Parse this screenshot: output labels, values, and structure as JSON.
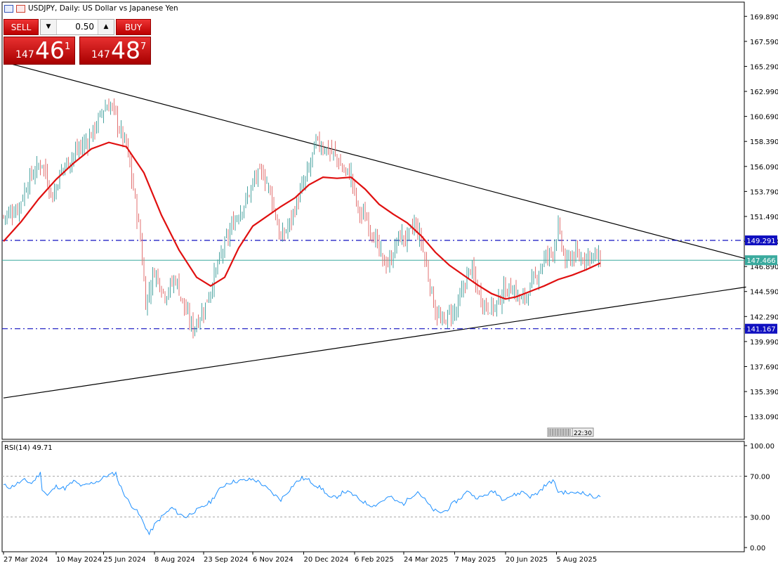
{
  "header": {
    "title": "USDJPY, Daily:  US Dollar vs Japanese Yen"
  },
  "trade_panel": {
    "sell_label": "SELL",
    "buy_label": "BUY",
    "lot_value": "0.50",
    "sell_price_prefix": "147",
    "sell_price_big": "46",
    "sell_price_sup": "1",
    "buy_price_prefix": "147",
    "buy_price_big": "48",
    "buy_price_sup": "7"
  },
  "time_badge": "22:30",
  "rsi": {
    "label": "RSI(14) 49.71"
  },
  "colors": {
    "ma_line": "#e01010",
    "level_line": "#1010c0",
    "bid_line": "#3aaa9e",
    "bull": "#4aa3a0",
    "bear": "#e27070",
    "rsi_line": "#1e90ff",
    "trendline": "#000000"
  },
  "chart_data": [
    {
      "type": "candlestick",
      "symbol": "USDJPY",
      "timeframe": "Daily",
      "ylim": [
        131.0,
        171.2
      ],
      "y_ticks": [
        "169.890",
        "167.590",
        "165.290",
        "162.990",
        "160.690",
        "158.390",
        "156.090",
        "153.790",
        "151.490",
        "149.190",
        "146.890",
        "144.590",
        "142.290",
        "139.990",
        "137.690",
        "135.390",
        "133.090"
      ],
      "x_ticks": [
        "27 Mar 2024",
        "10 May 2024",
        "25 Jun 2024",
        "8 Aug 2024",
        "23 Sep 2024",
        "6 Nov 2024",
        "20 Dec 2024",
        "6 Feb 2025",
        "24 Mar 2025",
        "7 May 2025",
        "20 Jun 2025",
        "5 Aug 2025"
      ],
      "close_path": [
        [
          0,
          151.5
        ],
        [
          8,
          152.2
        ],
        [
          15,
          155.0
        ],
        [
          22,
          156.5
        ],
        [
          28,
          153.2
        ],
        [
          33,
          155.8
        ],
        [
          40,
          157.2
        ],
        [
          48,
          158.5
        ],
        [
          52,
          159.6
        ],
        [
          57,
          161.4
        ],
        [
          61,
          161.7
        ],
        [
          63,
          161.2
        ],
        [
          66,
          159.5
        ],
        [
          70,
          158.0
        ],
        [
          74,
          154.0
        ],
        [
          78,
          149.5
        ],
        [
          81,
          143.5
        ],
        [
          86,
          146.5
        ],
        [
          92,
          144.3
        ],
        [
          98,
          145.8
        ],
        [
          104,
          142.6
        ],
        [
          108,
          141.2
        ],
        [
          114,
          142.9
        ],
        [
          118,
          144.8
        ],
        [
          122,
          147.0
        ],
        [
          127,
          149.3
        ],
        [
          132,
          151.3
        ],
        [
          138,
          152.9
        ],
        [
          144,
          155.2
        ],
        [
          148,
          155.4
        ],
        [
          152,
          153.8
        ],
        [
          158,
          149.3
        ],
        [
          163,
          150.9
        ],
        [
          168,
          153.2
        ],
        [
          173,
          155.3
        ],
        [
          178,
          158.3
        ],
        [
          184,
          157.7
        ],
        [
          189,
          157.1
        ],
        [
          193,
          155.8
        ],
        [
          198,
          155.3
        ],
        [
          202,
          152.0
        ],
        [
          207,
          151.2
        ],
        [
          212,
          149.3
        ],
        [
          216,
          147.3
        ],
        [
          220,
          147.2
        ],
        [
          225,
          149.6
        ],
        [
          230,
          149.5
        ],
        [
          234,
          150.8
        ],
        [
          238,
          149.2
        ],
        [
          242,
          146.0
        ],
        [
          246,
          142.8
        ],
        [
          250,
          141.6
        ],
        [
          254,
          142.6
        ],
        [
          258,
          142.8
        ],
        [
          263,
          145.5
        ],
        [
          266,
          146.8
        ],
        [
          271,
          144.3
        ],
        [
          275,
          143.2
        ],
        [
          280,
          143.2
        ],
        [
          285,
          144.6
        ],
        [
          290,
          144.9
        ],
        [
          295,
          143.7
        ],
        [
          299,
          144.6
        ],
        [
          304,
          146.2
        ],
        [
          308,
          147.6
        ],
        [
          313,
          148.4
        ],
        [
          316,
          150.4
        ],
        [
          320,
          147.2
        ],
        [
          324,
          147.9
        ],
        [
          329,
          147.6
        ],
        [
          333,
          148.0
        ],
        [
          337,
          147.8
        ],
        [
          340,
          147.4
        ]
      ],
      "moving_average": [
        [
          0,
          149.2
        ],
        [
          10,
          151.0
        ],
        [
          20,
          153.1
        ],
        [
          30,
          154.9
        ],
        [
          40,
          156.4
        ],
        [
          50,
          157.7
        ],
        [
          60,
          158.3
        ],
        [
          70,
          157.9
        ],
        [
          80,
          155.5
        ],
        [
          90,
          151.6
        ],
        [
          100,
          148.4
        ],
        [
          110,
          145.9
        ],
        [
          118,
          145.1
        ],
        [
          126,
          145.9
        ],
        [
          134,
          148.6
        ],
        [
          142,
          150.6
        ],
        [
          150,
          151.5
        ],
        [
          158,
          152.4
        ],
        [
          166,
          153.2
        ],
        [
          174,
          154.4
        ],
        [
          182,
          155.1
        ],
        [
          190,
          155.0
        ],
        [
          198,
          155.1
        ],
        [
          206,
          154.0
        ],
        [
          214,
          152.6
        ],
        [
          222,
          151.7
        ],
        [
          230,
          150.9
        ],
        [
          238,
          149.7
        ],
        [
          246,
          148.2
        ],
        [
          254,
          147.0
        ],
        [
          262,
          146.1
        ],
        [
          270,
          145.2
        ],
        [
          278,
          144.4
        ],
        [
          286,
          143.9
        ],
        [
          292,
          144.1
        ],
        [
          300,
          144.6
        ],
        [
          308,
          145.1
        ],
        [
          316,
          145.7
        ],
        [
          324,
          146.1
        ],
        [
          332,
          146.6
        ],
        [
          340,
          147.2
        ]
      ],
      "horizontal_levels": [
        {
          "value": 149.291,
          "label": "149.291",
          "style": "dash-dot"
        },
        {
          "value": 141.167,
          "label": "141.167",
          "style": "dash-dot"
        },
        {
          "value": 147.466,
          "label": "147.466",
          "style": "bid"
        }
      ],
      "trendlines": [
        {
          "from": [
            0,
            165.7
          ],
          "to": [
            423,
            147.6
          ]
        },
        {
          "from": [
            0,
            134.8
          ],
          "to": [
            423,
            145.0
          ]
        }
      ],
      "last_bar_index": 340
    },
    {
      "type": "line",
      "name": "RSI(14)",
      "ylim": [
        0,
        100
      ],
      "y_ticks": [
        "100.00",
        "70.00",
        "30.00",
        "0.00"
      ],
      "levels": [
        70,
        30
      ],
      "values_path": [
        [
          0,
          61
        ],
        [
          4,
          59
        ],
        [
          8,
          63
        ],
        [
          12,
          66
        ],
        [
          16,
          63
        ],
        [
          18,
          67
        ],
        [
          21,
          73
        ],
        [
          22,
          58
        ],
        [
          25,
          51
        ],
        [
          30,
          60
        ],
        [
          35,
          58
        ],
        [
          40,
          65
        ],
        [
          45,
          60
        ],
        [
          50,
          63
        ],
        [
          55,
          66
        ],
        [
          58,
          70
        ],
        [
          62,
          72
        ],
        [
          64,
          73
        ],
        [
          66,
          62
        ],
        [
          69,
          52
        ],
        [
          72,
          43
        ],
        [
          75,
          38
        ],
        [
          78,
          30
        ],
        [
          81,
          20
        ],
        [
          83,
          13
        ],
        [
          86,
          22
        ],
        [
          90,
          30
        ],
        [
          96,
          39
        ],
        [
          100,
          33
        ],
        [
          104,
          30
        ],
        [
          108,
          35
        ],
        [
          112,
          38
        ],
        [
          118,
          45
        ],
        [
          122,
          55
        ],
        [
          127,
          63
        ],
        [
          132,
          65
        ],
        [
          138,
          66
        ],
        [
          142,
          67
        ],
        [
          146,
          64
        ],
        [
          150,
          58
        ],
        [
          154,
          52
        ],
        [
          158,
          47
        ],
        [
          162,
          55
        ],
        [
          166,
          63
        ],
        [
          170,
          68
        ],
        [
          174,
          66
        ],
        [
          178,
          61
        ],
        [
          182,
          57
        ],
        [
          186,
          48
        ],
        [
          190,
          50
        ],
        [
          194,
          55
        ],
        [
          198,
          53
        ],
        [
          203,
          47
        ],
        [
          207,
          43
        ],
        [
          211,
          41
        ],
        [
          216,
          46
        ],
        [
          220,
          50
        ],
        [
          224,
          45
        ],
        [
          228,
          43
        ],
        [
          232,
          50
        ],
        [
          236,
          55
        ],
        [
          240,
          47
        ],
        [
          244,
          38
        ],
        [
          248,
          34
        ],
        [
          252,
          36
        ],
        [
          256,
          43
        ],
        [
          260,
          48
        ],
        [
          265,
          56
        ],
        [
          268,
          50
        ],
        [
          272,
          49
        ],
        [
          276,
          53
        ],
        [
          280,
          55
        ],
        [
          284,
          48
        ],
        [
          288,
          50
        ],
        [
          292,
          52
        ],
        [
          296,
          55
        ],
        [
          300,
          50
        ],
        [
          304,
          53
        ],
        [
          308,
          60
        ],
        [
          313,
          66
        ],
        [
          316,
          55
        ],
        [
          320,
          54
        ],
        [
          324,
          53
        ],
        [
          328,
          55
        ],
        [
          332,
          52
        ],
        [
          336,
          50
        ],
        [
          340,
          49.71
        ]
      ]
    }
  ]
}
